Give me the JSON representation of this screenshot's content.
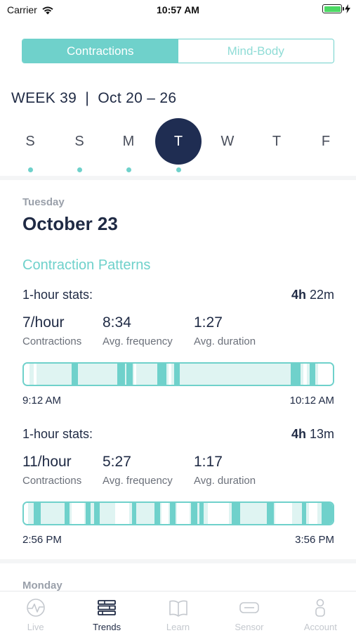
{
  "status_bar": {
    "carrier": "Carrier",
    "time": "10:57 AM",
    "battery_level": 1.0,
    "battery_color": "#4cd964"
  },
  "segmented_control": {
    "options": [
      {
        "label": "Contractions",
        "active": true
      },
      {
        "label": "Mind-Body",
        "active": false
      }
    ]
  },
  "week": {
    "label": "WEEK 39  |  Oct 20 – 26"
  },
  "days": [
    {
      "letter": "S",
      "has_data": true,
      "selected": false
    },
    {
      "letter": "S",
      "has_data": true,
      "selected": false
    },
    {
      "letter": "M",
      "has_data": true,
      "selected": false
    },
    {
      "letter": "T",
      "has_data": true,
      "selected": true
    },
    {
      "letter": "W",
      "has_data": false,
      "selected": false
    },
    {
      "letter": "T",
      "has_data": false,
      "selected": false
    },
    {
      "letter": "F",
      "has_data": false,
      "selected": false
    }
  ],
  "day_detail": {
    "weekday": "Tuesday",
    "date": "October 23",
    "section_title": "Contraction Patterns",
    "stats": [
      {
        "header": "1-hour stats:",
        "duration_hours": "4h",
        "duration_minutes": "22m",
        "contractions_value": "7/hour",
        "contractions_label": "Contractions",
        "frequency_value": "8:34",
        "frequency_label": "Avg. frequency",
        "duration_value": "1:27",
        "duration_label": "Avg. duration",
        "start_time": "9:12 AM",
        "end_time": "10:12 AM"
      },
      {
        "header": "1-hour stats:",
        "duration_hours": "4h",
        "duration_minutes": "13m",
        "contractions_value": "11/hour",
        "contractions_label": "Contractions",
        "frequency_value": "5:27",
        "frequency_label": "Avg. frequency",
        "duration_value": "1:17",
        "duration_label": "Avg. duration",
        "start_time": "2:56 PM",
        "end_time": "3:56 PM"
      }
    ]
  },
  "next_day": {
    "weekday": "Monday"
  },
  "tab_bar": {
    "tabs": [
      {
        "label": "Live",
        "icon": "live-pulse-icon",
        "active": false
      },
      {
        "label": "Trends",
        "icon": "trends-bars-icon",
        "active": true
      },
      {
        "label": "Learn",
        "icon": "learn-book-icon",
        "active": false
      },
      {
        "label": "Sensor",
        "icon": "sensor-icon",
        "active": false
      },
      {
        "label": "Account",
        "icon": "account-person-icon",
        "active": false
      }
    ]
  },
  "colors": {
    "accent": "#6fd1cb",
    "navy": "#1f2d52",
    "timeline_bg": "#dff4f2"
  }
}
